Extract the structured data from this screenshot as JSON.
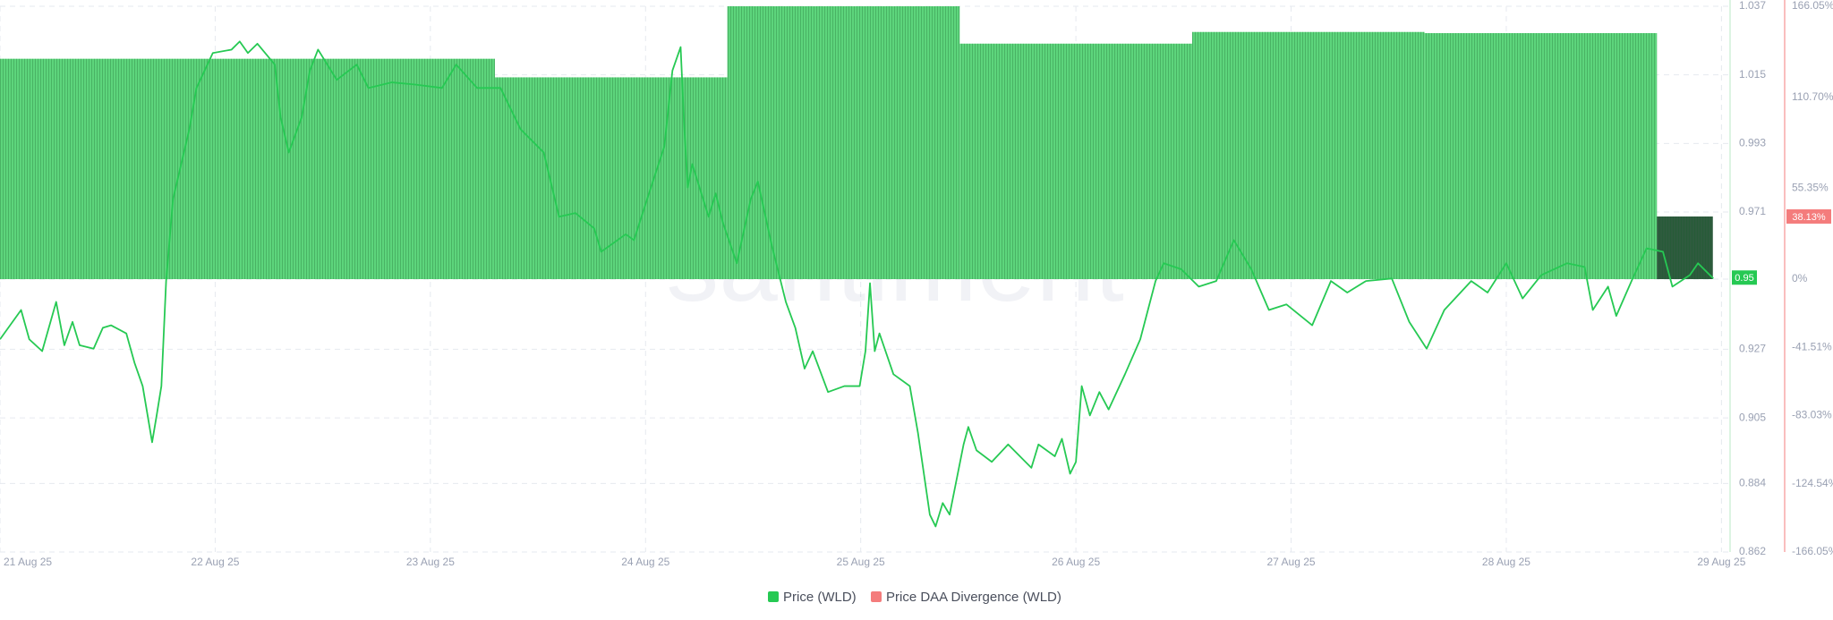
{
  "chart_data": {
    "type": "combo",
    "watermark": "santiment",
    "xlim": [
      21,
      29.04
    ],
    "xticks": [
      {
        "value": 21,
        "label": "21 Aug 25"
      },
      {
        "value": 22,
        "label": "22 Aug 25"
      },
      {
        "value": 23,
        "label": "23 Aug 25"
      },
      {
        "value": 24,
        "label": "24 Aug 25"
      },
      {
        "value": 25,
        "label": "25 Aug 25"
      },
      {
        "value": 26,
        "label": "26 Aug 25"
      },
      {
        "value": 27,
        "label": "27 Aug 25"
      },
      {
        "value": 28,
        "label": "28 Aug 25"
      },
      {
        "value": 29,
        "label": "29 Aug 25"
      }
    ],
    "ylim": [
      0.862,
      1.037
    ],
    "yticks": [
      0.862,
      0.884,
      0.905,
      0.927,
      0.971,
      0.993,
      1.015,
      1.037
    ],
    "y2lim": [
      -166.05,
      166.05
    ],
    "y2ticks": [
      {
        "value": -166.05,
        "label": "-166.05%"
      },
      {
        "value": -124.54,
        "label": "-124.54%"
      },
      {
        "value": -83.03,
        "label": "-83.03%"
      },
      {
        "value": -41.51,
        "label": "-41.51%"
      },
      {
        "value": 0,
        "label": "0%"
      },
      {
        "value": 55.35,
        "label": "55.35%"
      },
      {
        "value": 110.7,
        "label": "110.70%"
      },
      {
        "value": 166.05,
        "label": "166.05%"
      }
    ],
    "grid": true,
    "price_tag": 0.95,
    "divergence_tag": {
      "value": 38.13,
      "label": "38.13%"
    },
    "series": [
      {
        "name": "Price (WLD)",
        "type": "line",
        "axis": "y",
        "color": "#26c953",
        "x": [
          21.0,
          21.098,
          21.136,
          21.196,
          21.261,
          21.299,
          21.337,
          21.37,
          21.435,
          21.478,
          21.516,
          21.587,
          21.625,
          21.663,
          21.707,
          21.728,
          21.75,
          21.772,
          21.804,
          21.842,
          21.88,
          21.913,
          21.951,
          21.989,
          22.076,
          22.114,
          22.152,
          22.196,
          22.277,
          22.304,
          22.342,
          22.402,
          22.44,
          22.478,
          22.565,
          22.658,
          22.712,
          22.821,
          22.929,
          23.054,
          23.12,
          23.217,
          23.326,
          23.419,
          23.527,
          23.598,
          23.674,
          23.761,
          23.794,
          23.908,
          23.946,
          24.016,
          24.087,
          24.125,
          24.163,
          24.179,
          24.196,
          24.217,
          24.293,
          24.326,
          24.359,
          24.424,
          24.489,
          24.522,
          24.587,
          24.652,
          24.696,
          24.739,
          24.777,
          24.848,
          24.924,
          24.995,
          25.022,
          25.043,
          25.065,
          25.087,
          25.152,
          25.228,
          25.266,
          25.321,
          25.348,
          25.381,
          25.413,
          25.478,
          25.5,
          25.538,
          25.609,
          25.685,
          25.793,
          25.826,
          25.902,
          25.935,
          25.973,
          26.0,
          26.027,
          26.065,
          26.109,
          26.152,
          26.228,
          26.299,
          26.37,
          26.408,
          26.489,
          26.571,
          26.652,
          26.734,
          26.815,
          26.897,
          26.978,
          27.098,
          27.185,
          27.261,
          27.348,
          27.468,
          27.549,
          27.63,
          27.712,
          27.837,
          27.913,
          28.0,
          28.076,
          28.163,
          28.283,
          28.364,
          28.402,
          28.473,
          28.511,
          28.582,
          28.652,
          28.728,
          28.772,
          28.853,
          28.891,
          28.962
        ],
        "values": [
          0.9302,
          0.9396,
          0.9302,
          0.9264,
          0.9422,
          0.9283,
          0.9358,
          0.9283,
          0.9272,
          0.9339,
          0.9347,
          0.9321,
          0.9227,
          0.9152,
          0.8972,
          0.9058,
          0.9152,
          0.9489,
          0.9752,
          0.9864,
          0.9976,
          1.0108,
          1.0164,
          1.022,
          1.0231,
          1.0257,
          1.022,
          1.025,
          1.0183,
          1.0014,
          0.9901,
          1.0014,
          1.0164,
          1.0231,
          1.0134,
          1.0183,
          1.0108,
          1.0126,
          1.0119,
          1.0108,
          1.0183,
          1.0108,
          1.0108,
          0.9976,
          0.9901,
          0.9695,
          0.9707,
          0.9658,
          0.9583,
          0.9639,
          0.962,
          0.977,
          0.992,
          1.0164,
          1.0239,
          0.9995,
          0.9789,
          0.9864,
          0.9695,
          0.977,
          0.9677,
          0.9546,
          0.9752,
          0.9808,
          0.9602,
          0.9422,
          0.9339,
          0.9208,
          0.9264,
          0.9133,
          0.9152,
          0.9152,
          0.9264,
          0.9482,
          0.9264,
          0.9321,
          0.919,
          0.9152,
          0.9002,
          0.874,
          0.8702,
          0.8777,
          0.874,
          0.8965,
          0.9021,
          0.8946,
          0.8909,
          0.8965,
          0.889,
          0.8965,
          0.8927,
          0.8983,
          0.8871,
          0.8909,
          0.9152,
          0.9058,
          0.9133,
          0.9077,
          0.919,
          0.9302,
          0.9489,
          0.9546,
          0.9527,
          0.9471,
          0.9489,
          0.962,
          0.9527,
          0.9396,
          0.9414,
          0.9347,
          0.9489,
          0.9452,
          0.9489,
          0.9497,
          0.9358,
          0.9272,
          0.9396,
          0.9489,
          0.9452,
          0.9546,
          0.9433,
          0.9508,
          0.9546,
          0.9534,
          0.9396,
          0.9471,
          0.9377,
          0.9489,
          0.9594,
          0.9583,
          0.9471,
          0.9508,
          0.9546,
          0.9497
        ]
      },
      {
        "name": "Price DAA Divergence (WLD)",
        "type": "bar",
        "axis": "y2",
        "color": "#f47c7c",
        "bar_color": "#5dd57c",
        "latest_bar_color": "#2e5b3e",
        "bins": [
          21.0,
          23.3,
          24.38,
          25.46,
          26.54,
          27.62,
          28.7,
          28.96
        ],
        "values": [
          134.1,
          122.8,
          166.05,
          143.3,
          150.4,
          149.7,
          38.13
        ]
      }
    ]
  }
}
